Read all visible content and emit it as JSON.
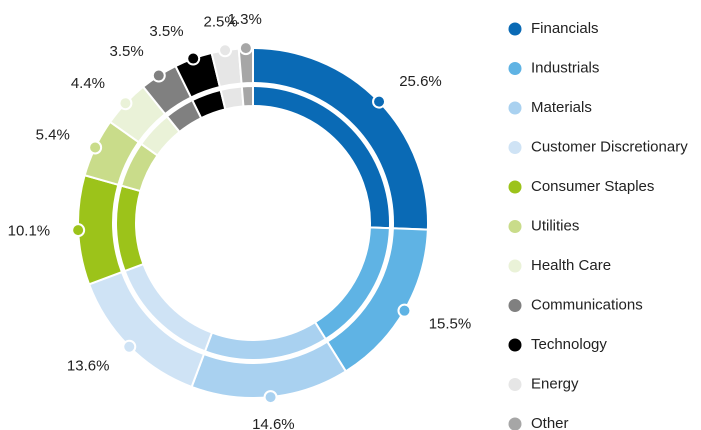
{
  "chart_data": {
    "type": "pie",
    "categories": [
      "Financials",
      "Industrials",
      "Materials",
      "Customer Discretionary",
      "Consumer Staples",
      "Utilities",
      "Health Care",
      "Communications",
      "Technology",
      "Energy",
      "Other"
    ],
    "values": [
      25.6,
      15.5,
      14.6,
      13.6,
      10.1,
      5.4,
      4.4,
      3.5,
      3.5,
      2.5,
      1.3
    ],
    "value_labels": [
      "25.6%",
      "15.5%",
      "14.6%",
      "13.6%",
      "10.1%",
      "5.4%",
      "4.4%",
      "3.5%",
      "3.5%",
      "2.5%",
      "1.3%"
    ],
    "colors": [
      "#0a6ab5",
      "#5fb3e4",
      "#a9d1f0",
      "#cfe3f5",
      "#9cc31a",
      "#c9dc8a",
      "#eaf2d8",
      "#808080",
      "#000000",
      "#e6e6e6",
      "#a6a6a6"
    ],
    "legend": "right"
  }
}
